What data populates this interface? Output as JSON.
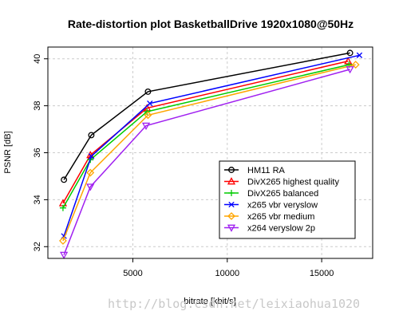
{
  "chart_data": {
    "type": "line",
    "title": "Rate-distortion plot BasketballDrive 1920x1080@50Hz",
    "xlabel": "bitrate [kbit/s]",
    "ylabel": "PSNR [dB]",
    "xlim": [
      500,
      17700
    ],
    "ylim": [
      31.5,
      40.5
    ],
    "xticks": [
      5000,
      10000,
      15000
    ],
    "yticks": [
      32,
      34,
      36,
      38,
      40
    ],
    "grid": true,
    "legend_position": "bottom-right",
    "series": [
      {
        "name": "HM11 RA",
        "color": "#000000",
        "marker": "circle",
        "x": [
          1350,
          2800,
          5800,
          16500
        ],
        "y": [
          34.85,
          36.75,
          38.6,
          40.25
        ]
      },
      {
        "name": "DivX265 highest quality",
        "color": "#ff0000",
        "marker": "triangle-up",
        "x": [
          1300,
          2750,
          5750,
          16400
        ],
        "y": [
          33.85,
          35.9,
          37.9,
          39.9
        ]
      },
      {
        "name": "DivX265 balanced",
        "color": "#00cc00",
        "marker": "plus",
        "x": [
          1300,
          2750,
          5750,
          16450
        ],
        "y": [
          33.65,
          35.7,
          37.75,
          39.75
        ]
      },
      {
        "name": "x265 vbr veryslow",
        "color": "#0000ff",
        "marker": "x",
        "x": [
          1350,
          2800,
          5900,
          17000
        ],
        "y": [
          32.45,
          35.85,
          38.1,
          40.15
        ]
      },
      {
        "name": "x265 vbr medium",
        "color": "#ffa500",
        "marker": "diamond",
        "x": [
          1300,
          2750,
          5800,
          16800
        ],
        "y": [
          32.25,
          35.15,
          37.6,
          39.75
        ]
      },
      {
        "name": "x264 veryslow 2p",
        "color": "#a020f0",
        "marker": "triangle-down",
        "x": [
          1350,
          2750,
          5700,
          16500
        ],
        "y": [
          31.65,
          34.55,
          37.15,
          39.55
        ]
      }
    ],
    "watermark": "http://blog.csdn.net/leixiaohua1020"
  }
}
